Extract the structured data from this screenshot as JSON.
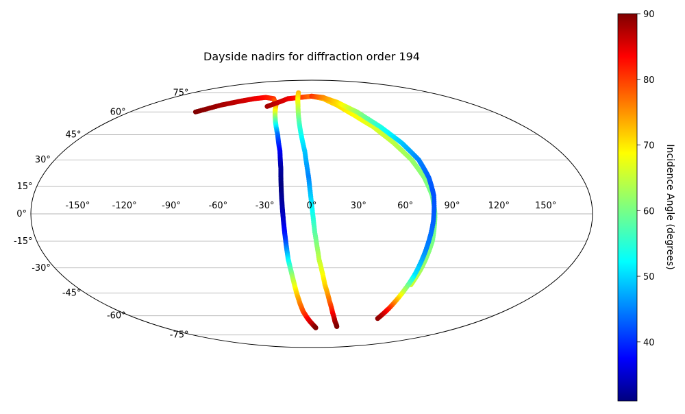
{
  "chart_data": {
    "type": "scatter",
    "projection": "mollweide",
    "title": "Dayside nadirs for diffraction order 194",
    "xlabel": "",
    "ylabel": "",
    "xlim": [
      -180,
      180
    ],
    "ylim": [
      -90,
      90
    ],
    "grid": true,
    "lon_ticks": [
      -150,
      -120,
      -90,
      -60,
      -30,
      0,
      30,
      60,
      90,
      120,
      150
    ],
    "lon_tick_labels": [
      "-150°",
      "-120°",
      "-90°",
      "-60°",
      "-30°",
      "0°",
      "30°",
      "60°",
      "90°",
      "120°",
      "150°"
    ],
    "lat_ticks": [
      75,
      60,
      45,
      30,
      15,
      0,
      -15,
      -30,
      -45,
      -60,
      -75
    ],
    "lat_tick_labels": [
      "75°",
      "60°",
      "45°",
      "30°",
      "15°",
      "0°",
      "-15°",
      "-30°",
      "-45°",
      "-60°",
      "-75°"
    ],
    "colorbar": {
      "label": "Incidence Angle (degrees)",
      "min": 31,
      "max": 90,
      "ticks": [
        40,
        50,
        60,
        70,
        80,
        90
      ],
      "tick_labels": [
        "40",
        "50",
        "60",
        "70",
        "80",
        "90"
      ],
      "colormap": "jet"
    },
    "series": [
      {
        "lon": [
          -115,
          -100,
          -85,
          -72,
          -60,
          -48,
          -40,
          -33,
          -27,
          -23,
          -21,
          -20,
          -19,
          -18,
          -17,
          -16,
          -14,
          -12,
          -10,
          -8,
          -5,
          -2,
          2,
          5
        ],
        "lat": [
          60,
          65,
          68,
          70,
          71,
          70,
          66,
          55,
          45,
          35,
          25,
          15,
          5,
          -5,
          -15,
          -25,
          -35,
          -45,
          -52,
          -57,
          -61,
          -64,
          -67,
          -69
        ],
        "incidence": [
          90,
          88,
          86,
          84,
          82,
          80,
          76,
          60,
          45,
          38,
          33,
          31,
          33,
          36,
          42,
          52,
          62,
          70,
          75,
          78,
          81,
          84,
          87,
          90
        ]
      },
      {
        "lon": [
          -48,
          -30,
          -15,
          0,
          15,
          28,
          40,
          52,
          62,
          70,
          75,
          78,
          79,
          79,
          77,
          75
        ],
        "lat": [
          64,
          70,
          71,
          72,
          70,
          65,
          58,
          50,
          40,
          30,
          20,
          10,
          0,
          -15,
          -30,
          -40
        ],
        "incidence": [
          88,
          84,
          80,
          76,
          72,
          70,
          68,
          66,
          64,
          62,
          61,
          60,
          60,
          60,
          62,
          65
        ]
      },
      {
        "lon": [
          -20,
          -15,
          -10,
          -5,
          -2,
          0,
          2,
          5,
          10,
          15,
          20,
          25,
          30
        ],
        "lat": [
          75,
          65,
          50,
          35,
          20,
          5,
          -10,
          -25,
          -40,
          -50,
          -58,
          -64,
          -68
        ],
        "incidence": [
          72,
          66,
          56,
          50,
          46,
          52,
          58,
          64,
          70,
          76,
          82,
          87,
          90
        ]
      },
      {
        "lon": [
          0,
          15,
          30,
          45,
          58,
          68,
          75,
          78,
          79,
          78,
          76,
          74,
          72,
          70,
          68
        ],
        "lat": [
          72,
          71,
          67,
          60,
          50,
          40,
          30,
          20,
          10,
          -5,
          -20,
          -35,
          -45,
          -55,
          -62
        ],
        "incidence": [
          80,
          75,
          70,
          62,
          55,
          50,
          46,
          44,
          43,
          44,
          46,
          52,
          65,
          80,
          89
        ]
      }
    ]
  }
}
